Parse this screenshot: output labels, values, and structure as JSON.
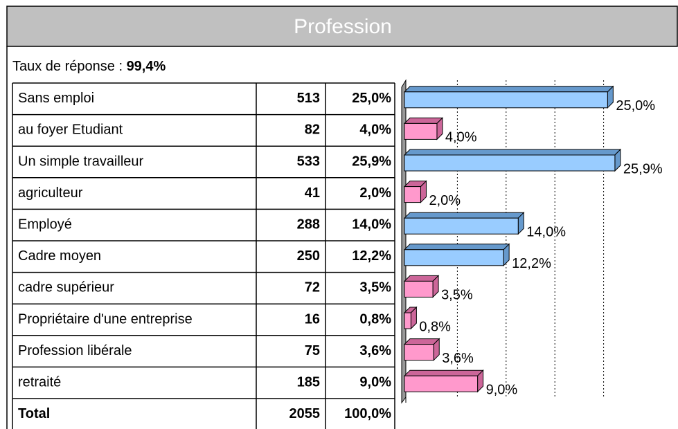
{
  "header": {
    "title": "Profession"
  },
  "response_rate": {
    "label": "Taux de réponse :",
    "value": "99,4%"
  },
  "chart_data": {
    "type": "bar",
    "categories": [
      "Sans emploi",
      "au foyer Etudiant",
      "Un simple travailleur",
      "agriculteur",
      "Employé",
      "Cadre moyen",
      "cadre supérieur",
      "Propriétaire d'une entreprise",
      "Profession libérale",
      "retraité"
    ],
    "counts": [
      513,
      82,
      533,
      41,
      288,
      250,
      72,
      16,
      75,
      185
    ],
    "values": [
      25.0,
      4.0,
      25.9,
      2.0,
      14.0,
      12.2,
      3.5,
      0.8,
      3.6,
      9.0
    ],
    "value_labels": [
      "25,0%",
      "4,0%",
      "25,9%",
      "2,0%",
      "14,0%",
      "12,2%",
      "3,5%",
      "0,8%",
      "3,6%",
      "9,0%"
    ],
    "colors": [
      "#99ccff",
      "#ff99cc",
      "#99ccff",
      "#ff99cc",
      "#99ccff",
      "#99ccff",
      "#ff99cc",
      "#ff99cc",
      "#ff99cc",
      "#ff99cc"
    ],
    "xlim": [
      0,
      30
    ],
    "xticks": [
      0,
      6,
      12,
      18,
      24
    ],
    "grid": true,
    "total": {
      "label": "Total",
      "count": 2055,
      "percent_label": "100,0%"
    }
  }
}
